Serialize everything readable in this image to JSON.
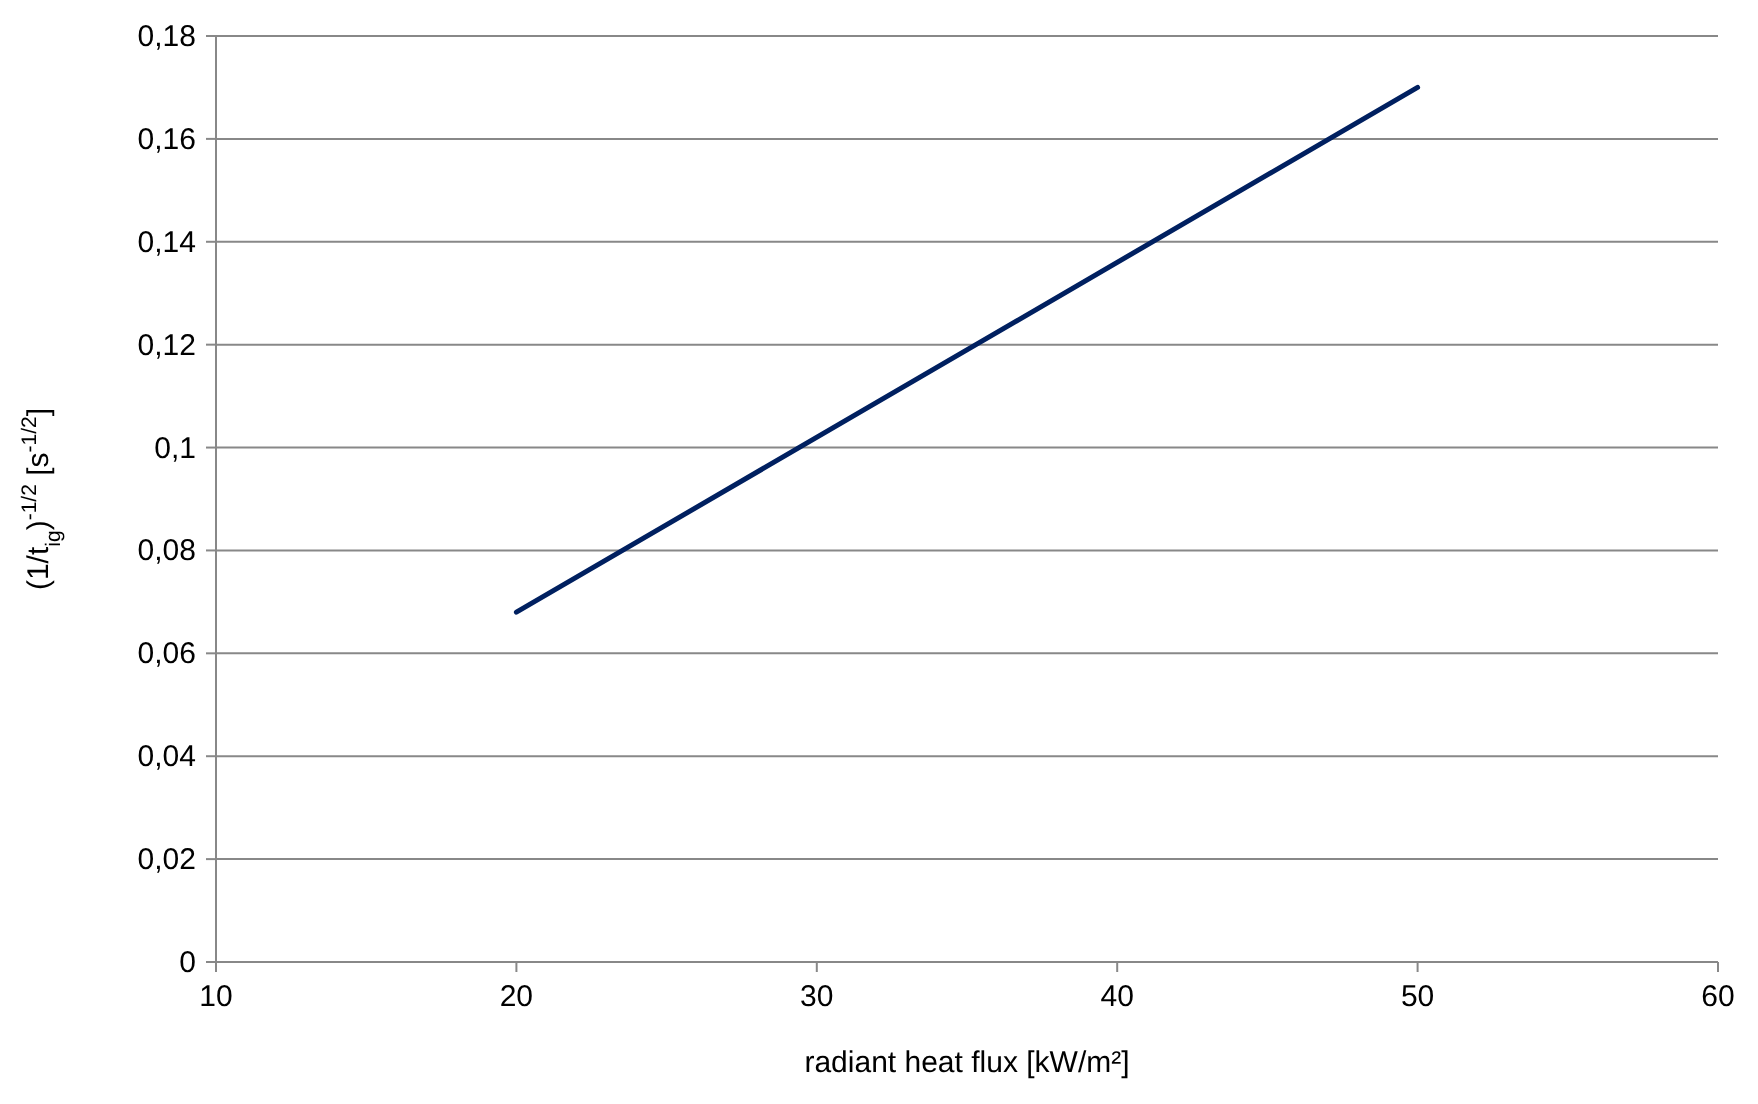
{
  "chart_data": {
    "type": "line",
    "xlabel": "radiant heat flux [kW/m²]",
    "ylabel": "(1/t$_{ig}$)$^{-1/2}$ [s$^{-1/2}$]",
    "x": [
      20,
      50
    ],
    "series": [
      {
        "color": "#002060",
        "values": [
          0.068,
          0.17
        ]
      }
    ],
    "xlim": [
      10,
      60
    ],
    "xticks": [
      10,
      20,
      30,
      40,
      50,
      60
    ],
    "ylim": [
      0,
      0.18
    ],
    "yticks": [
      {
        "value": 0,
        "label": "0"
      },
      {
        "value": 0.02,
        "label": "0,02"
      },
      {
        "value": 0.04,
        "label": "0,04"
      },
      {
        "value": 0.06,
        "label": "0,06"
      },
      {
        "value": 0.08,
        "label": "0,08"
      },
      {
        "value": 0.1,
        "label": "0,1"
      },
      {
        "value": 0.12,
        "label": "0,12"
      },
      {
        "value": 0.14,
        "label": "0,14"
      },
      {
        "value": 0.16,
        "label": "0,16"
      },
      {
        "value": 0.18,
        "label": "0,18"
      }
    ],
    "grid": "y",
    "marker": "none",
    "line_style": "solid"
  }
}
